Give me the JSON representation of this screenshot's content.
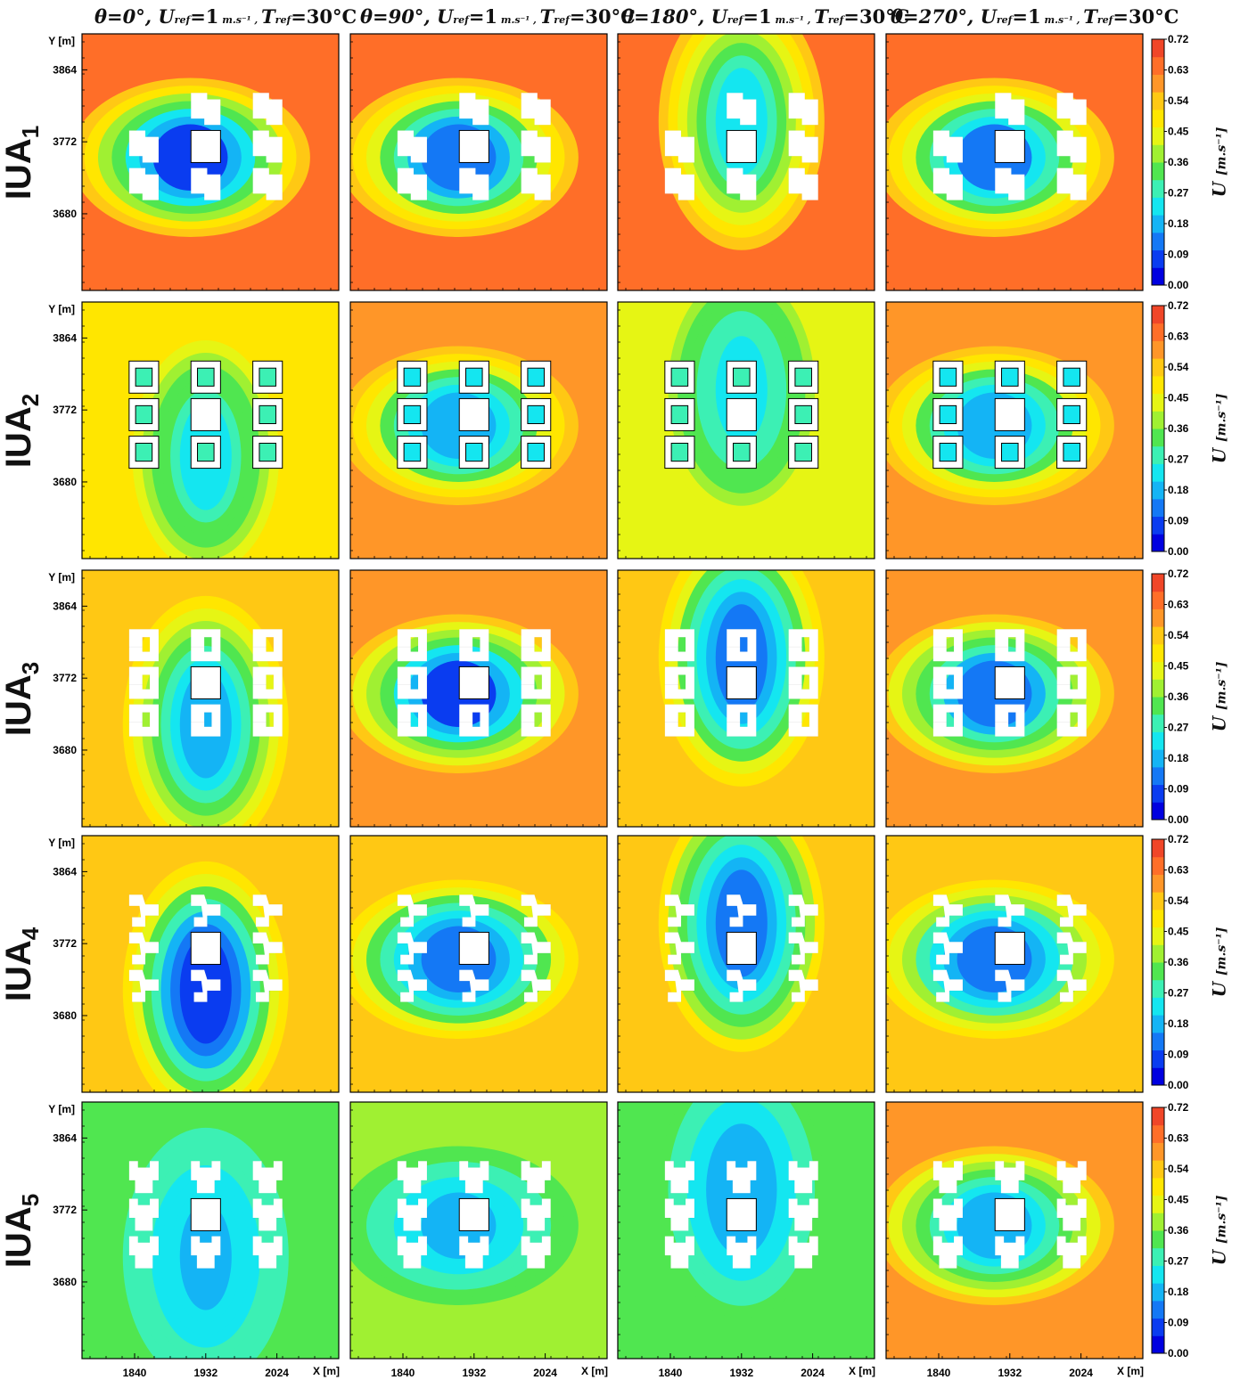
{
  "chart_data": {
    "type": "heatmap",
    "title": "",
    "columns": [
      {
        "theta": "0°",
        "label": "θ=0°, U_ref=1 m.s⁻¹ , T_ref=30°C"
      },
      {
        "theta": "90°",
        "label": "θ=90°, U_ref=1 m.s⁻¹ , T_ref=30°C"
      },
      {
        "theta": "180°",
        "label": "θ=180°, U_ref=1 m.s⁻¹ , T_ref=30°C"
      },
      {
        "theta": "270°",
        "label": "θ=270°, U_ref=1 m.s⁻¹ , T_ref=30°C"
      }
    ],
    "rows": [
      "IUA1",
      "IUA2",
      "IUA3",
      "IUA4",
      "IUA5"
    ],
    "row_labels": [
      {
        "main": "IUA",
        "sub": "1"
      },
      {
        "main": "IUA",
        "sub": "2"
      },
      {
        "main": "IUA",
        "sub": "3"
      },
      {
        "main": "IUA",
        "sub": "4"
      },
      {
        "main": "IUA",
        "sub": "5"
      }
    ],
    "column_title_parts": {
      "theta_sym": "θ",
      "eq": "=",
      "uref": "U",
      "ref_sub": "ref",
      "uref_val": "=1",
      "uref_unit": " m.s⁻¹",
      "tref": "T",
      "tref_val": "=30°C"
    },
    "xlabel": "X [m]",
    "ylabel": "Y [m]",
    "xticks": [
      1840,
      1932,
      2024
    ],
    "yticks": [
      3864,
      3772,
      3680
    ],
    "xlim": [
      1772,
      2104
    ],
    "ylim": [
      3582,
      3910
    ],
    "colorbar": {
      "label": "U [m.s⁻¹]",
      "label_main": "U",
      "label_unit": "[m.s⁻¹]",
      "min": 0.0,
      "max": 0.72,
      "ticks": [
        "0.72",
        "0.63",
        "0.54",
        "0.45",
        "0.36",
        "0.27",
        "0.18",
        "0.09",
        "0.00"
      ],
      "colors": [
        "#0000e0",
        "#0a3cf0",
        "#1478f5",
        "#14b4f5",
        "#14e6f0",
        "#3cf0b4",
        "#50e650",
        "#a0f032",
        "#e6f514",
        "#ffe600",
        "#ffc814",
        "#ff9628",
        "#ff6e28",
        "#f04628"
      ]
    },
    "panels": [
      [
        {
          "ambient": 0.64,
          "wake_from": "left",
          "wake": 0.08,
          "shape": "L-block"
        },
        {
          "ambient": 0.63,
          "wake_from": "left",
          "wake": 0.12,
          "shape": "L-block"
        },
        {
          "ambient": 0.62,
          "wake_from": "top",
          "wake": 0.22,
          "shape": "L-block"
        },
        {
          "ambient": 0.63,
          "wake_from": "left",
          "wake": 0.14,
          "shape": "L-block"
        }
      ],
      [
        {
          "ambient": 0.5,
          "wake_from": "bottom",
          "wake": 0.24,
          "shape": "courtyard"
        },
        {
          "ambient": 0.6,
          "wake_from": "left",
          "wake": 0.16,
          "shape": "courtyard"
        },
        {
          "ambient": 0.44,
          "wake_from": "top",
          "wake": 0.24,
          "shape": "courtyard"
        },
        {
          "ambient": 0.6,
          "wake_from": "left",
          "wake": 0.16,
          "shape": "courtyard"
        }
      ],
      [
        {
          "ambient": 0.52,
          "wake_from": "bottom",
          "wake": 0.16,
          "shape": "U-block"
        },
        {
          "ambient": 0.6,
          "wake_from": "left",
          "wake": 0.1,
          "shape": "U-block"
        },
        {
          "ambient": 0.52,
          "wake_from": "top",
          "wake": 0.14,
          "shape": "U-block"
        },
        {
          "ambient": 0.58,
          "wake_from": "left",
          "wake": 0.14,
          "shape": "U-block"
        }
      ],
      [
        {
          "ambient": 0.56,
          "wake_from": "bottom",
          "wake": 0.06,
          "shape": "Z-block"
        },
        {
          "ambient": 0.53,
          "wake_from": "left",
          "wake": 0.12,
          "shape": "Z-block"
        },
        {
          "ambient": 0.52,
          "wake_from": "top",
          "wake": 0.12,
          "shape": "Z-block"
        },
        {
          "ambient": 0.54,
          "wake_from": "left",
          "wake": 0.12,
          "shape": "Z-block"
        }
      ],
      [
        {
          "ambient": 0.32,
          "wake_from": "bottom",
          "wake": 0.2,
          "shape": "T-block"
        },
        {
          "ambient": 0.36,
          "wake_from": "left",
          "wake": 0.2,
          "shape": "T-block"
        },
        {
          "ambient": 0.34,
          "wake_from": "top",
          "wake": 0.18,
          "shape": "T-block"
        },
        {
          "ambient": 0.58,
          "wake_from": "left",
          "wake": 0.16,
          "shape": "T-block"
        }
      ]
    ]
  }
}
